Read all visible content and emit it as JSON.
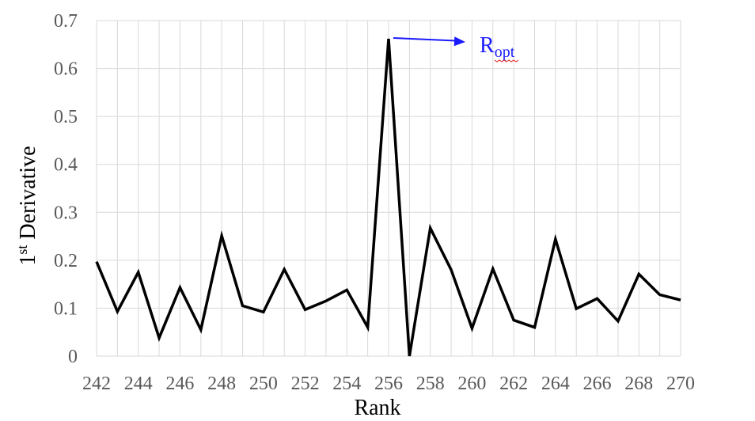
{
  "chart_data": {
    "type": "line",
    "title": "",
    "xlabel": "Rank",
    "ylabel": {
      "main": "1",
      "sup": "st",
      "rest": " Derivative"
    },
    "xlim": [
      242,
      270
    ],
    "ylim": [
      0,
      0.7
    ],
    "xticks": [
      242,
      244,
      246,
      248,
      250,
      252,
      254,
      256,
      258,
      260,
      262,
      264,
      266,
      268,
      270
    ],
    "yticks": [
      0,
      0.1,
      0.2,
      0.3,
      0.4,
      0.5,
      0.6,
      0.7
    ],
    "ytick_labels": [
      "0",
      "0.1",
      "0.2",
      "0.3",
      "0.4",
      "0.5",
      "0.6",
      "0.7"
    ],
    "grid": true,
    "legend": "none",
    "series": [
      {
        "color": "#000000",
        "x": [
          242,
          243,
          244,
          245,
          246,
          247,
          248,
          249,
          250,
          251,
          252,
          253,
          254,
          255,
          256,
          257,
          258,
          259,
          260,
          261,
          262,
          263,
          264,
          265,
          266,
          267,
          268,
          269,
          270
        ],
        "y": [
          0.197,
          0.093,
          0.175,
          0.038,
          0.143,
          0.055,
          0.251,
          0.105,
          0.092,
          0.181,
          0.097,
          0.115,
          0.138,
          0.06,
          0.662,
          0.0,
          0.267,
          0.18,
          0.058,
          0.182,
          0.075,
          0.06,
          0.244,
          0.099,
          0.12,
          0.073,
          0.171,
          0.128,
          0.117
        ]
      }
    ],
    "annotation": {
      "text_main": "R",
      "text_sub": "opt",
      "color": "#1a1aff",
      "points_to": [
        256,
        0.662
      ]
    }
  }
}
